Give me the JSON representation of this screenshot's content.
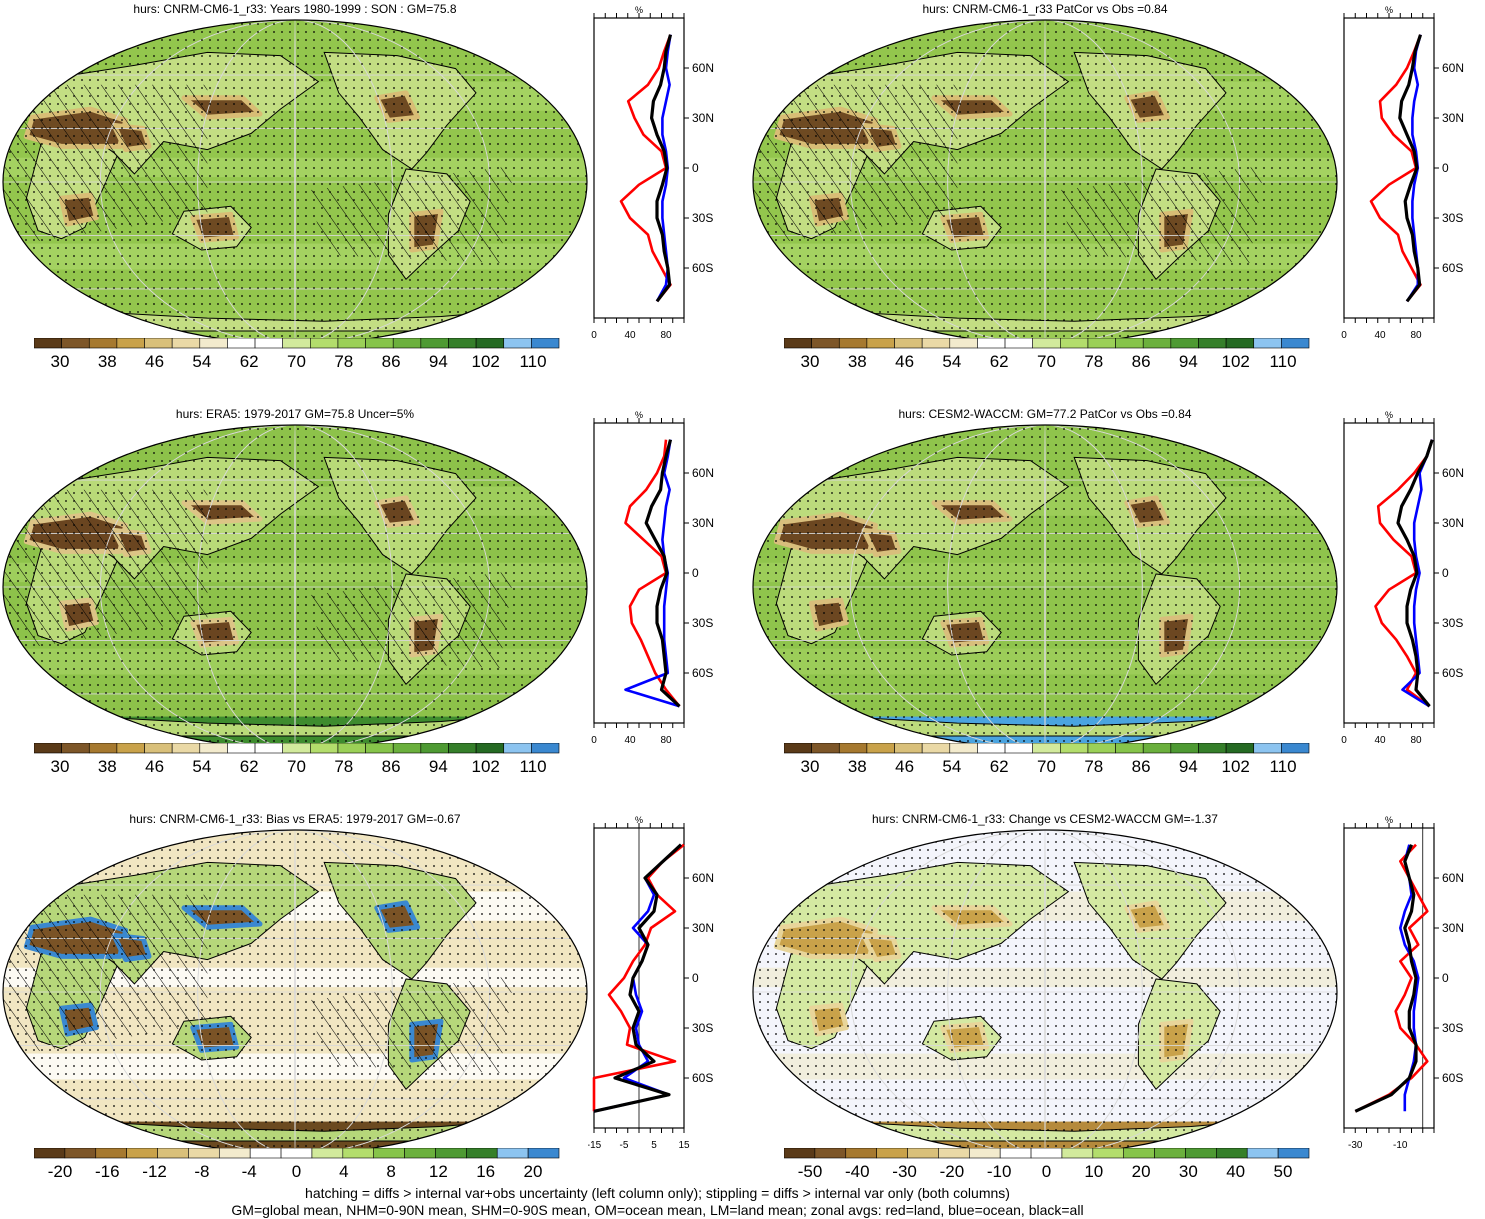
{
  "panels": [
    {
      "title": "hurs: CNRM-CM6-1_r33: Years 1980-1999 : SON : GM=75.8",
      "variant": "model",
      "zonal": {
        "unit": "%",
        "xticks": [
          "0",
          "40",
          "80"
        ],
        "yticks": [
          "60N",
          "30N",
          "0",
          "30S",
          "60S"
        ]
      },
      "colorbar": {
        "labels": [
          "30",
          "38",
          "46",
          "54",
          "62",
          "70",
          "78",
          "86",
          "94",
          "102",
          "110"
        ]
      }
    },
    {
      "title": "hurs: CNRM-CM6-1_r33 PatCor vs Obs =0.84",
      "variant": "model",
      "zonal": {
        "unit": "%",
        "xticks": [
          "0",
          "40",
          "80"
        ],
        "yticks": [
          "60N",
          "30N",
          "0",
          "30S",
          "60S"
        ]
      },
      "colorbar": {
        "labels": [
          "30",
          "38",
          "46",
          "54",
          "62",
          "70",
          "78",
          "86",
          "94",
          "102",
          "110"
        ]
      }
    },
    {
      "title": "hurs: ERA5: 1979-2017 GM=75.8 Uncer=5%",
      "variant": "obs",
      "zonal": {
        "unit": "%",
        "xticks": [
          "0",
          "40",
          "80"
        ],
        "yticks": [
          "60N",
          "30N",
          "0",
          "30S",
          "60S"
        ]
      },
      "colorbar": {
        "labels": [
          "30",
          "38",
          "46",
          "54",
          "62",
          "70",
          "78",
          "86",
          "94",
          "102",
          "110"
        ]
      }
    },
    {
      "title": "hurs: CESM2-WACCM: GM=77.2 PatCor vs Obs =0.84",
      "variant": "model2",
      "zonal": {
        "unit": "%",
        "xticks": [
          "0",
          "40",
          "80"
        ],
        "yticks": [
          "60N",
          "30N",
          "0",
          "30S",
          "60S"
        ]
      },
      "colorbar": {
        "labels": [
          "30",
          "38",
          "46",
          "54",
          "62",
          "70",
          "78",
          "86",
          "94",
          "102",
          "110"
        ]
      }
    },
    {
      "title": "hurs: CNRM-CM6-1_r33: Bias vs ERA5: 1979-2017  GM=-0.67",
      "variant": "bias",
      "zonal": {
        "unit": "%",
        "xticks": [
          "-15",
          "-5",
          "5",
          "15"
        ],
        "yticks": [
          "60N",
          "30N",
          "0",
          "30S",
          "60S"
        ]
      },
      "colorbar": {
        "labels": [
          "-20",
          "-16",
          "-12",
          "-8",
          "-4",
          "0",
          "4",
          "8",
          "12",
          "16",
          "20"
        ]
      }
    },
    {
      "title": "hurs: CNRM-CM6-1_r33: Change vs CESM2-WACCM GM=-1.37",
      "variant": "change",
      "zonal": {
        "unit": "%",
        "xticks": [
          "-30",
          "-10"
        ],
        "yticks": [
          "60N",
          "30N",
          "0",
          "30S",
          "60S"
        ]
      },
      "colorbar": {
        "labels": [
          "-50",
          "-40",
          "-30",
          "-20",
          "-10",
          "0",
          "10",
          "20",
          "30",
          "40",
          "50"
        ]
      }
    }
  ],
  "colors": {
    "abs_scale": [
      "#5a3a18",
      "#7d5628",
      "#a6792f",
      "#c9a24a",
      "#d9c07a",
      "#ead9a6",
      "#f3ebcd",
      "#ffffff",
      "#ffffff",
      "#d2ea9c",
      "#b3dd6c",
      "#9bd057",
      "#86c44a",
      "#6bb03d",
      "#4e9a33",
      "#357f2a",
      "#256a23",
      "#8cc4f0",
      "#3a88d0"
    ],
    "div_scale": [
      "#5a3a18",
      "#7d5628",
      "#a6792f",
      "#c9a24a",
      "#d9c07a",
      "#ead9a6",
      "#f3ebcd",
      "#ffffff",
      "#ffffff",
      "#d2ea9c",
      "#b3dd6c",
      "#86c44a",
      "#6bb03d",
      "#4e9a33",
      "#357f2a",
      "#8cc4f0",
      "#3a88d0"
    ],
    "land": "#e8d59a",
    "ocean": "#8fc24a"
  },
  "chart_data": {
    "type": "line",
    "series_legend": [
      "land",
      "ocean",
      "all"
    ],
    "series_colors": {
      "land": "#ff0000",
      "ocean": "#0000ff",
      "all": "#000000"
    },
    "ylim": [
      -90,
      90
    ],
    "zonal_means": [
      {
        "panel": 1,
        "xlim": [
          0,
          100
        ],
        "lat": [
          80,
          70,
          60,
          50,
          40,
          30,
          20,
          10,
          0,
          -10,
          -20,
          -30,
          -40,
          -50,
          -60,
          -70,
          -80
        ],
        "land": [
          85,
          78,
          72,
          60,
          38,
          45,
          55,
          75,
          80,
          50,
          30,
          40,
          60,
          65,
          75,
          85,
          70
        ],
        "ocean": [
          85,
          82,
          80,
          84,
          80,
          76,
          76,
          80,
          82,
          80,
          76,
          76,
          78,
          80,
          82,
          80,
          70
        ],
        "all": [
          85,
          80,
          78,
          74,
          66,
          64,
          70,
          78,
          81,
          76,
          70,
          70,
          76,
          78,
          82,
          84,
          70
        ]
      },
      {
        "panel": 2,
        "xlim": [
          0,
          100
        ],
        "lat": [
          80,
          70,
          60,
          50,
          40,
          30,
          20,
          10,
          0,
          -10,
          -20,
          -30,
          -40,
          -50,
          -60,
          -70,
          -80
        ],
        "land": [
          85,
          78,
          70,
          58,
          40,
          42,
          55,
          75,
          80,
          50,
          30,
          40,
          60,
          65,
          75,
          85,
          70
        ],
        "ocean": [
          85,
          80,
          78,
          82,
          78,
          76,
          76,
          80,
          82,
          78,
          76,
          76,
          78,
          80,
          82,
          82,
          70
        ],
        "all": [
          85,
          79,
          76,
          72,
          64,
          62,
          70,
          78,
          81,
          74,
          68,
          70,
          76,
          78,
          82,
          84,
          70
        ]
      },
      {
        "panel": 3,
        "xlim": [
          0,
          100
        ],
        "lat": [
          80,
          70,
          60,
          50,
          40,
          30,
          20,
          10,
          0,
          -10,
          -20,
          -30,
          -40,
          -50,
          -60,
          -70,
          -80
        ],
        "land": [
          80,
          78,
          70,
          58,
          40,
          35,
          55,
          75,
          80,
          50,
          40,
          42,
          52,
          60,
          68,
          80,
          95
        ],
        "ocean": [
          85,
          82,
          78,
          84,
          80,
          78,
          76,
          78,
          82,
          80,
          78,
          78,
          78,
          80,
          82,
          35,
          95
        ],
        "all": [
          85,
          80,
          76,
          74,
          64,
          58,
          68,
          78,
          81,
          74,
          70,
          70,
          76,
          78,
          80,
          75,
          95
        ]
      },
      {
        "panel": 4,
        "xlim": [
          0,
          100
        ],
        "lat": [
          80,
          70,
          60,
          50,
          40,
          30,
          20,
          10,
          0,
          -10,
          -20,
          -30,
          -40,
          -50,
          -60,
          -70,
          -80
        ],
        "land": [
          98,
          92,
          78,
          60,
          38,
          40,
          55,
          75,
          80,
          50,
          35,
          42,
          58,
          70,
          80,
          70,
          95
        ],
        "ocean": [
          98,
          92,
          84,
          86,
          82,
          78,
          78,
          80,
          84,
          80,
          78,
          78,
          80,
          82,
          84,
          65,
          95
        ],
        "all": [
          98,
          92,
          82,
          74,
          64,
          60,
          70,
          78,
          81,
          74,
          70,
          70,
          76,
          80,
          82,
          80,
          95
        ]
      },
      {
        "panel": 5,
        "xlim": [
          -15,
          15
        ],
        "lat": [
          80,
          70,
          60,
          50,
          40,
          30,
          20,
          10,
          0,
          -10,
          -20,
          -30,
          -40,
          -50,
          -60,
          -70,
          -80
        ],
        "land": [
          15,
          8,
          3,
          6,
          12,
          4,
          2,
          -2,
          -5,
          -10,
          -6,
          -3,
          -4,
          12,
          -15,
          -15,
          -15
        ],
        "ocean": [
          14,
          8,
          2,
          5,
          3,
          -2,
          3,
          1,
          -2,
          -1,
          1,
          -1,
          0,
          3,
          -5,
          10,
          -15
        ],
        "all": [
          14,
          8,
          2,
          6,
          5,
          0,
          3,
          1,
          -2,
          -3,
          0,
          -2,
          -1,
          5,
          -8,
          10,
          -15
        ]
      },
      {
        "panel": 6,
        "xlim": [
          -35,
          5
        ],
        "lat": [
          80,
          70,
          60,
          50,
          40,
          30,
          20,
          10,
          0,
          -10,
          -20,
          -30,
          -40,
          -50,
          -60,
          -70,
          -80
        ],
        "land": [
          -3,
          -10,
          -6,
          -2,
          2,
          -6,
          -2,
          -10,
          -5,
          -8,
          -12,
          -10,
          -3,
          2,
          -5,
          -15,
          -30
        ],
        "ocean": [
          -6,
          -8,
          -6,
          -5,
          -8,
          -10,
          -8,
          -4,
          -2,
          -3,
          -4,
          -4,
          -3,
          -4,
          -6,
          -8,
          -8
        ],
        "all": [
          -5,
          -8,
          -6,
          -4,
          -5,
          -8,
          -6,
          -5,
          -3,
          -4,
          -6,
          -6,
          -3,
          -3,
          -6,
          -14,
          -30
        ]
      }
    ]
  },
  "footer": {
    "line1": "hatching = diffs > internal var+obs uncertainty (left column only); stippling = diffs > internal var only (both columns)",
    "line2": "GM=global mean, NHM=0-90N mean, SHM=0-90S mean, OM=ocean mean, LM=land mean; zonal avgs: red=land, blue=ocean, black=all"
  }
}
